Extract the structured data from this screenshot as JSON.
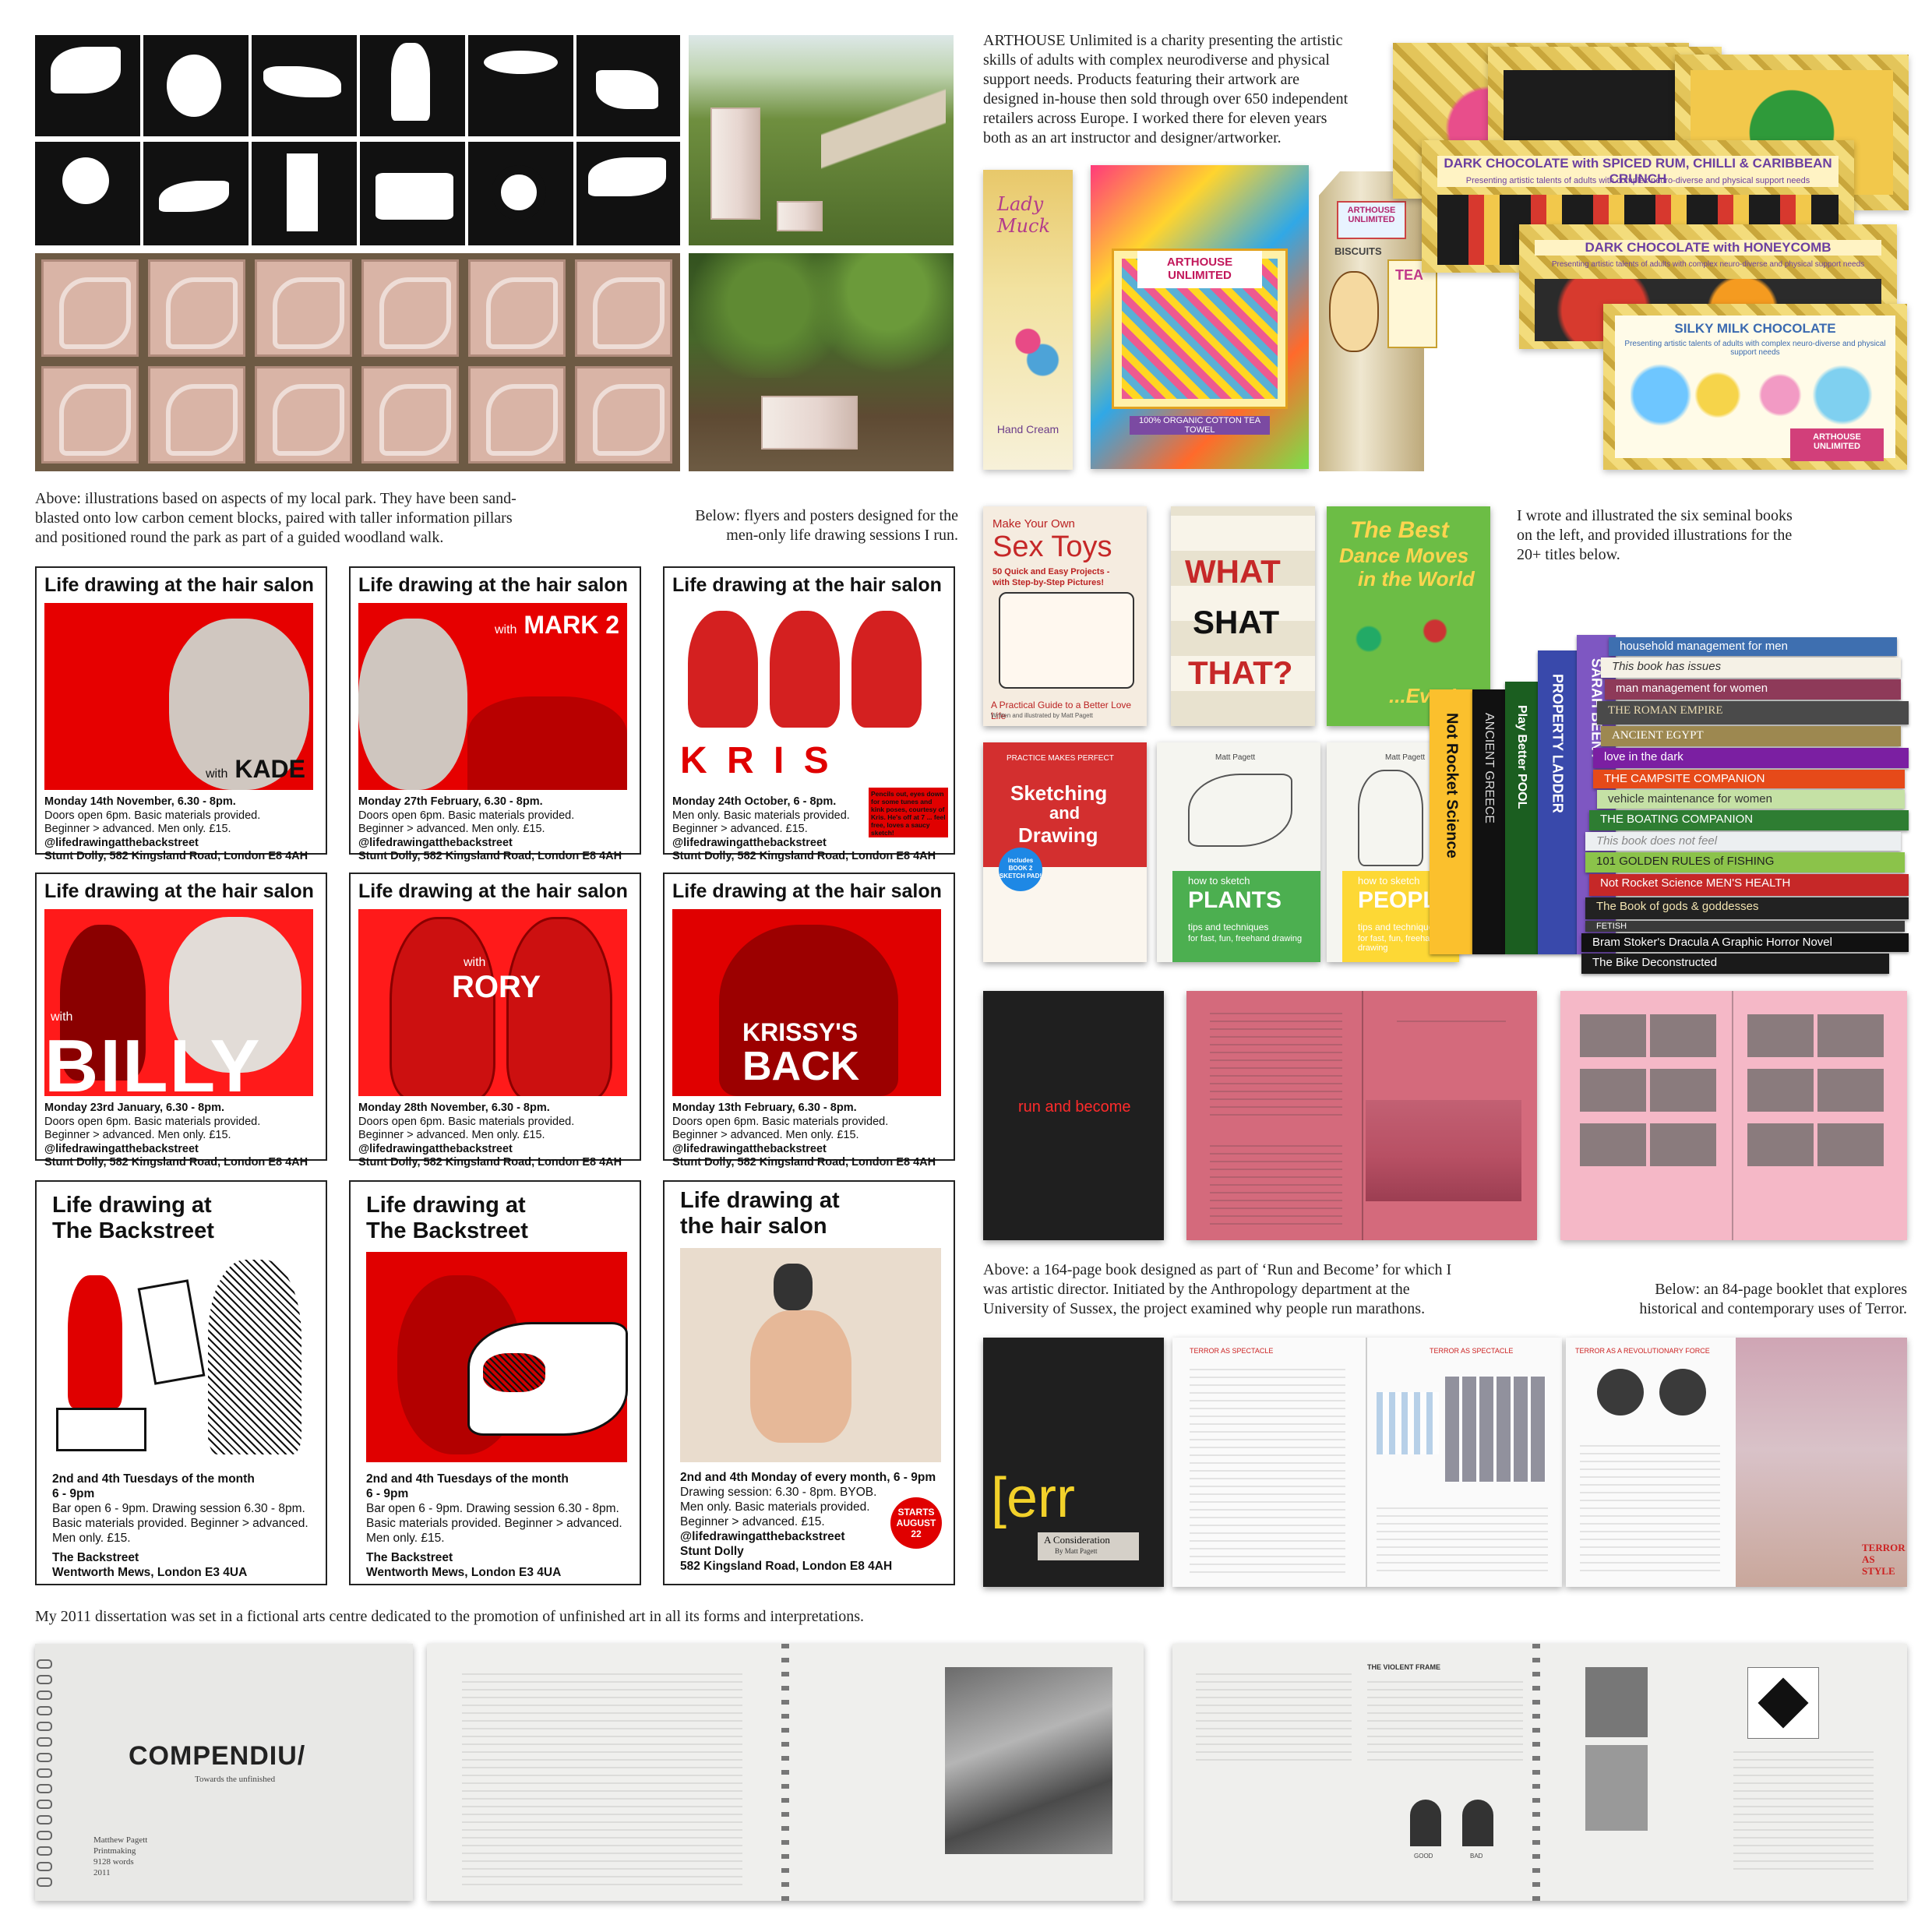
{
  "park": {
    "caption": "Above: illustrations based on aspects of my local park. They have been sand-blasted onto low carbon cement blocks, paired with taller information pillars and positioned round the park as part of a guided woodland walk."
  },
  "arthouse": {
    "intro": "ARTHOUSE Unlimited is a charity presenting the artistic skills of adults with complex neurodiverse and physical support needs. Products featuring their artwork are designed in-house then sold through over 650 independent retailers across Europe. I worked there for eleven years both as an art instructor and designer/artworker.",
    "brand": "ARTHOUSE UNLIMITED",
    "products": {
      "lady_muck": "Lady Muck",
      "hand_cream": "Hand Cream",
      "tea_towel": "100% ORGANIC COTTON TEA TOWEL",
      "biscuits": "BISCUITS",
      "tea": "TEA",
      "spiced": "DARK CHOCOLATE with SPICED RUM, CHILLI & CARIBBEAN CRUNCH",
      "honeycomb": "DARK CHOCOLATE with HONEYCOMB",
      "milk": "SILKY MILK CHOCOLATE",
      "tagline": "Presenting artistic talents of adults with complex neuro-diverse and physical support needs"
    }
  },
  "flyers": {
    "caption": "Below: flyers and posters designed for the men-only life drawing sessions I run.",
    "title_salon": "Life drawing at the hair salon",
    "with": "with",
    "handle": "@lifedrawingatthebackstreet",
    "venue_salon": "Stunt Dolly, 582 Kingsland Road, London E8 4AH",
    "posters": [
      {
        "model": "KADE",
        "date": "Monday 14th November, 6.30 - 8pm.",
        "l2": "Doors open 6pm. Basic materials provided.",
        "l3": "Beginner > advanced. Men only. £15."
      },
      {
        "model": "MARK 2",
        "date": "Monday 27th February, 6.30 - 8pm.",
        "l2": "Doors open 6pm. Basic materials provided.",
        "l3": "Beginner > advanced. Men only. £15."
      },
      {
        "model": "K R I S",
        "date": "Monday 24th October, 6 - 8pm.",
        "l2": "Men only. Basic materials provided.",
        "l3": "Beginner > advanced. £15.",
        "note": "Pencils out, eyes down for some tunes and kink poses, courtesy of Kris. He's off at 7 ... feel free, loves a saucy sketch!"
      },
      {
        "model": "BILLY",
        "date": "Monday 23rd January, 6.30 - 8pm.",
        "l2": "Doors open 6pm. Basic materials provided.",
        "l3": "Beginner > advanced. Men only. £15."
      },
      {
        "model": "RORY",
        "date": "Monday 28th November, 6.30 - 8pm.",
        "l2": "Doors open 6pm. Basic materials provided.",
        "l3": "Beginner > advanced. Men only. £15."
      },
      {
        "model1": "KRISSY'S",
        "model2": "BACK",
        "date": "Monday 13th February, 6.30 - 8pm.",
        "l2": "Doors open 6pm. Basic materials provided.",
        "l3": "Beginner > advanced. Men only. £15."
      }
    ],
    "big": [
      {
        "t1": "Life drawing at",
        "t2": "The Backstreet",
        "l1": "2nd and 4th Tuesdays of the month",
        "l2": "6 - 9pm",
        "l3": "Bar open 6 - 9pm. Drawing session 6.30 - 8pm.",
        "l4": "Basic materials provided. Beginner > advanced.",
        "l5": "Men only. £15.",
        "v1": "The Backstreet",
        "v2": "Wentworth Mews, London E3 4UA"
      },
      {
        "t1": "Life drawing at",
        "t2": "The Backstreet",
        "l1": "2nd and 4th Tuesdays of the month",
        "l2": "6 - 9pm",
        "l3": "Bar open 6 - 9pm. Drawing session 6.30 - 8pm.",
        "l4": "Basic materials provided. Beginner > advanced.",
        "l5": "Men only. £15.",
        "v1": "The Backstreet",
        "v2": "Wentworth Mews, London E3 4UA"
      },
      {
        "t1": "Life drawing at",
        "t2": "the hair salon",
        "l1": "2nd and 4th Monday of every month, 6 - 9pm",
        "l2": "Drawing session: 6.30 - 8pm. BYOB.",
        "l3": "Men only. Basic materials provided.",
        "l4": "Beginner > advanced. £15.",
        "l5": "@lifedrawingatthebackstreet",
        "v1": "Stunt Dolly",
        "v2": "582 Kingsland Road, London E8 4AH",
        "badge1": "STARTS",
        "badge2": "AUGUST",
        "badge3": "22"
      }
    ]
  },
  "books": {
    "caption": "I wrote and illustrated the six seminal books on the left, and provided illustrations for the 20+ titles below.",
    "sextoys": {
      "l1": "Make Your Own",
      "l2": "Sex Toys",
      "l3": "50 Quick and Easy Projects -",
      "l4": "with Step-by-Step Pictures!",
      "l5": "A Practical Guide to a Better Love Life",
      "l6": "Written and illustrated by Matt Pagett"
    },
    "what": {
      "l1": "WHAT",
      "l2": "SHAT",
      "l3": "THAT?"
    },
    "dance": {
      "l1": "The Best",
      "l2": "Dance Moves",
      "l3": "in the World",
      "l4": "...Ever!"
    },
    "sketching": {
      "top": "PRACTICE MAKES PERFECT",
      "l1": "Sketching",
      "l2": "and",
      "l3": "Drawing",
      "badge": "includes BOOK 2 SKETCH PAD!"
    },
    "plants": {
      "author": "Matt Pagett",
      "l1": "how to sketch",
      "l2": "PLANTS",
      "l3": "tips and techniques",
      "l4": "for fast, fun, freehand drawing"
    },
    "people": {
      "author": "Matt Pagett",
      "l1": "how to sketch",
      "l2": "PEOPLE",
      "l3": "tips and techniques",
      "l4": "for fast, fun, freehand drawing"
    },
    "stack": [
      "household management for men",
      "This book has issues",
      "man management for women",
      "THE ROMAN EMPIRE",
      "ANCIENT EGYPT",
      "love in the dark",
      "THE CAMPSITE COMPANION",
      "vehicle maintenance for women",
      "THE BOATING COMPANION",
      "This book does not feel",
      "101 GOLDEN RULES of FISHING",
      "Not Rocket Science  MEN'S HEALTH",
      "The Book of gods & goddesses",
      "FETISH",
      "Bram Stoker's Dracula  A Graphic Horror Novel",
      "The Bike Deconstructed"
    ],
    "vertical": [
      "SARAH BEENY",
      "Not Rocket Science",
      "ANCIENT GREECE",
      "PROPERTY LADDER",
      "Play Better POOL"
    ]
  },
  "run": {
    "cover": "run and become",
    "caption": "Above: a 164-page book designed as part of ‘Run and Become’ for which I was artistic director. Initiated by the Anthropology department at the University of Sussex, the project examined why people run marathons."
  },
  "terror": {
    "caption": "Below: an 84-page booklet that explores historical and contemporary uses of Terror.",
    "cover_big": "[err",
    "cover_sub1": "A Consideration",
    "cover_sub2": "By Matt Pagett",
    "h1": "TERROR AS SPECTACLE",
    "h2": "TERROR AS SPECTACLE",
    "h3": "TERROR AS A REVOLUTIONARY FORCE",
    "style": "TERROR AS STYLE"
  },
  "dissertation": {
    "caption": "My 2011 dissertation was set in a fictional arts centre dedicated to the promotion of unfinished art in all its forms and interpretations.",
    "title": "COMPENDIU/",
    "subtitle": "Towards the unfinished",
    "meta": [
      "Matthew Pagett",
      "Printmaking",
      "9128 words",
      "2011"
    ],
    "heading2": "THE VIOLENT FRAME",
    "good": "GOOD",
    "bad": "BAD"
  }
}
